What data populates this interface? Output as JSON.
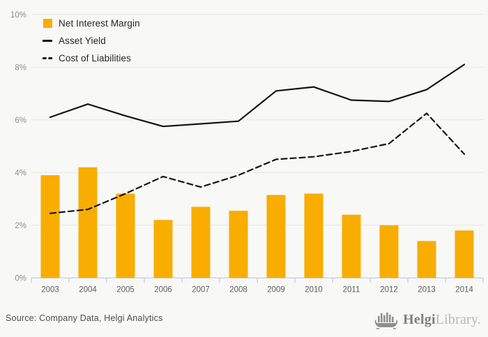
{
  "chart_data": {
    "type": "bar",
    "subtype": "combo-bar-line",
    "title": "",
    "categories": [
      "2003",
      "2004",
      "2005",
      "2006",
      "2007",
      "2008",
      "2009",
      "2010",
      "2011",
      "2012",
      "2013",
      "2014"
    ],
    "series": [
      {
        "name": "Net Interest Margin",
        "type": "bar",
        "style": "solid",
        "color": "#f9ad00",
        "values": [
          3.9,
          4.2,
          3.2,
          2.2,
          2.7,
          2.55,
          3.15,
          3.2,
          2.4,
          2.0,
          1.4,
          1.8
        ]
      },
      {
        "name": "Asset Yield",
        "type": "line",
        "style": "solid",
        "color": "#141414",
        "values": [
          6.1,
          6.6,
          6.15,
          5.75,
          5.85,
          5.95,
          7.1,
          7.25,
          6.75,
          6.7,
          7.15,
          8.1
        ]
      },
      {
        "name": "Cost of Liabilities",
        "type": "line",
        "style": "dashed",
        "color": "#141414",
        "values": [
          2.45,
          2.6,
          3.2,
          3.85,
          3.45,
          3.9,
          4.5,
          4.6,
          4.8,
          5.1,
          6.25,
          4.7
        ]
      }
    ],
    "y_axis": {
      "min": 0,
      "max": 10,
      "step": 2,
      "tick_labels": [
        "0%",
        "2%",
        "4%",
        "6%",
        "8%",
        "10%"
      ],
      "unit": "%",
      "grid": true
    },
    "x_axis": {
      "label": "",
      "tick_labels": [
        "2003",
        "2004",
        "2005",
        "2006",
        "2007",
        "2008",
        "2009",
        "2010",
        "2011",
        "2012",
        "2013",
        "2014"
      ]
    },
    "legend_position": "top-left",
    "ylim": [
      0,
      10
    ]
  },
  "legend": {
    "items": [
      {
        "label": "Net Interest Margin",
        "swatch": "bar-swatch"
      },
      {
        "label": "Asset Yield",
        "swatch": "solid-line-swatch"
      },
      {
        "label": "Cost of Liabilities",
        "swatch": "dashed-line-swatch"
      }
    ]
  },
  "footer": {
    "source_text": "Source: Company Data, Helgi Analytics"
  },
  "branding": {
    "name_bold": "Helgi",
    "name_light": "Library."
  },
  "colors": {
    "background": "#f8f8f7",
    "bar": "#f9ad00",
    "line": "#141414",
    "gridline": "#e6e6e5",
    "axis": "#bfc8de",
    "y_label": "#8d8d8d",
    "x_label": "#5e5c57",
    "source_text": "#4d4d4d",
    "brand_dark": "#7f7f7f",
    "brand_light": "#b9b9b9"
  }
}
